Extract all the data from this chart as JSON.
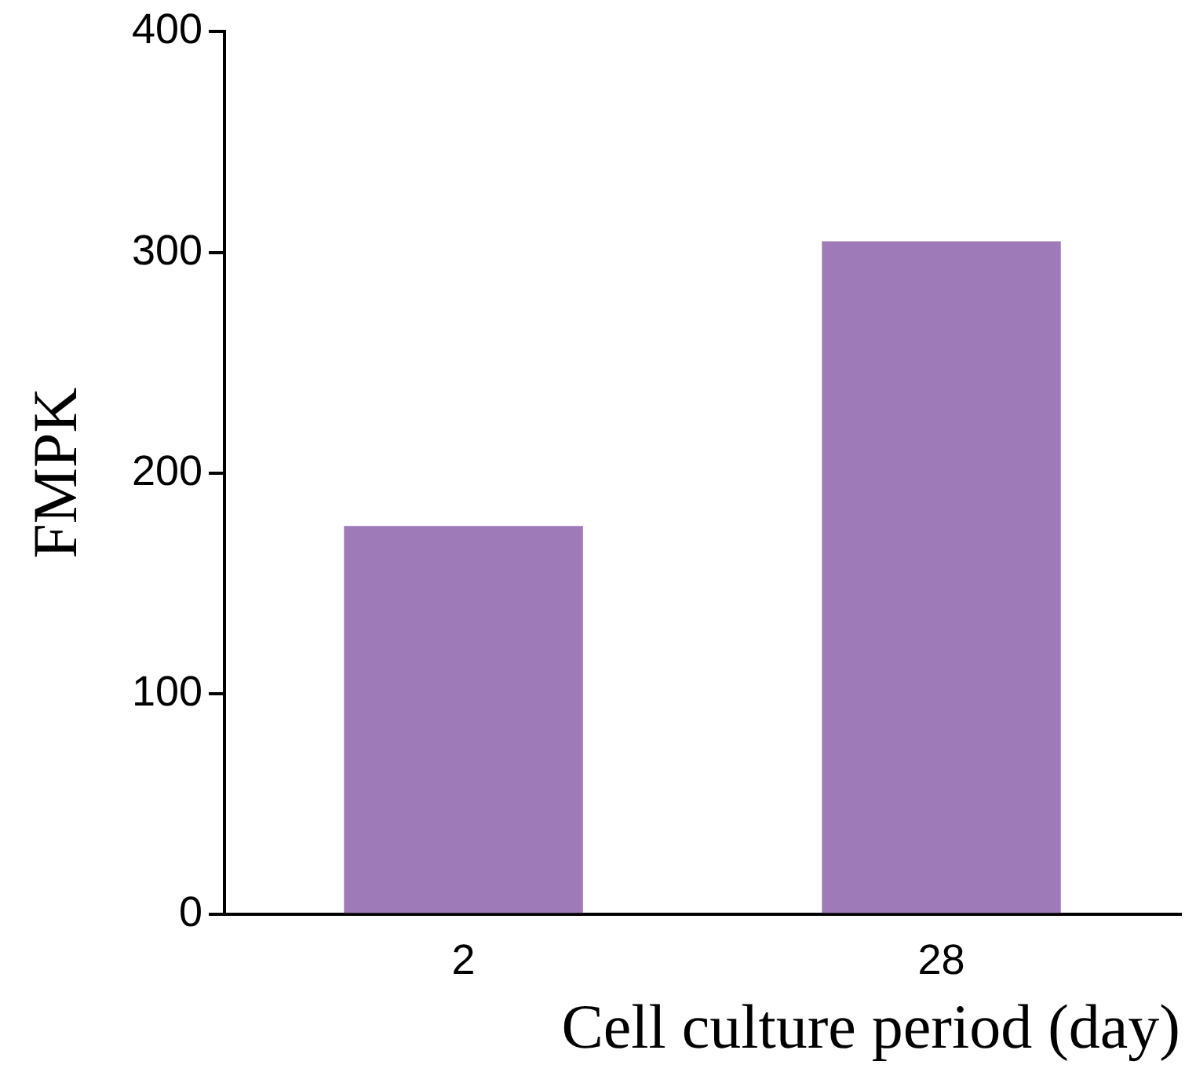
{
  "chart_data": {
    "type": "bar",
    "xlabel": "Cell culture period (day)",
    "ylabel": "FMPK",
    "categories": [
      "2",
      "28"
    ],
    "series": [
      {
        "color": "#9e7bb8",
        "values": [
          176,
          305
        ]
      }
    ],
    "ylim": [
      0,
      400
    ],
    "yticks": [
      0,
      100,
      200,
      300,
      400
    ],
    "grid": false,
    "legend": false
  }
}
